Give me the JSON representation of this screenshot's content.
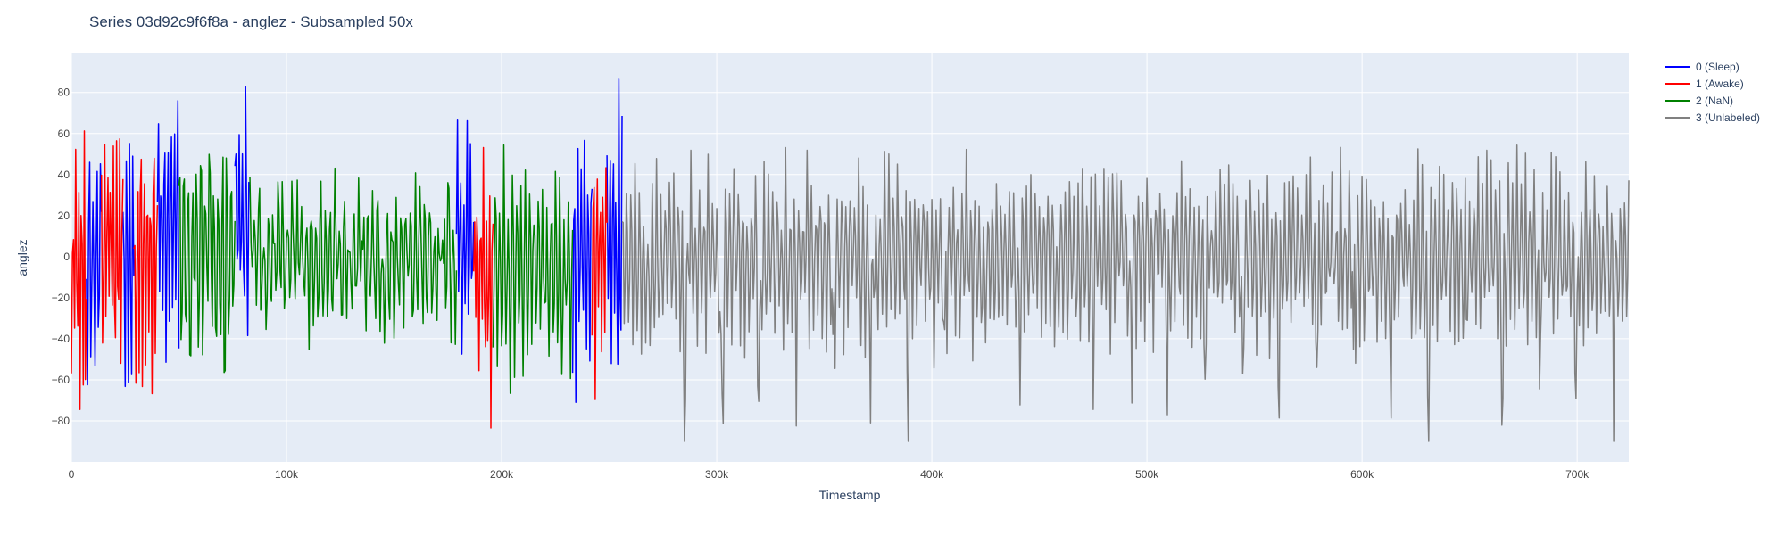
{
  "chart_data": {
    "type": "line",
    "title": "Series 03d92c9f6f8a - anglez - Subsampled 50x",
    "xlabel": "Timestamp",
    "ylabel": "anglez",
    "xlim": [
      0,
      724000
    ],
    "ylim": [
      -100,
      99
    ],
    "x_ticks": [
      {
        "value": 0,
        "label": "0"
      },
      {
        "value": 100000,
        "label": "100k"
      },
      {
        "value": 200000,
        "label": "200k"
      },
      {
        "value": 300000,
        "label": "300k"
      },
      {
        "value": 400000,
        "label": "400k"
      },
      {
        "value": 500000,
        "label": "500k"
      },
      {
        "value": 600000,
        "label": "600k"
      },
      {
        "value": 700000,
        "label": "700k"
      }
    ],
    "y_ticks": [
      {
        "value": 80,
        "label": "80"
      },
      {
        "value": 60,
        "label": "60"
      },
      {
        "value": 40,
        "label": "40"
      },
      {
        "value": 20,
        "label": "20"
      },
      {
        "value": 0,
        "label": "0"
      },
      {
        "value": -20,
        "label": "−20"
      },
      {
        "value": -40,
        "label": "−40"
      },
      {
        "value": -60,
        "label": "−60"
      },
      {
        "value": -80,
        "label": "−80"
      }
    ],
    "grid": true,
    "legend_position": "top-right",
    "background": "#e5ecf6",
    "series": [
      {
        "name": "0 (Sleep)",
        "color": "#0000ff",
        "segments": [
          {
            "x_start": 7000,
            "x_end": 14000,
            "amp": 70,
            "period": 1800,
            "baseline": -5
          },
          {
            "x_start": 24000,
            "x_end": 29000,
            "amp": 75,
            "period": 1500,
            "baseline": 0
          },
          {
            "x_start": 40000,
            "x_end": 50000,
            "amp": 80,
            "period": 1500,
            "baseline": 15
          },
          {
            "x_start": 76000,
            "x_end": 83000,
            "amp": 72,
            "period": 1600,
            "baseline": 10
          },
          {
            "x_start": 179000,
            "x_end": 187000,
            "amp": 70,
            "period": 1500,
            "baseline": 5
          },
          {
            "x_start": 233000,
            "x_end": 242000,
            "amp": 75,
            "period": 1600,
            "baseline": 0
          },
          {
            "x_start": 249000,
            "x_end": 256000,
            "amp": 80,
            "period": 1400,
            "baseline": 0
          }
        ]
      },
      {
        "name": "1 (Awake)",
        "color": "#ff0000",
        "segments": [
          {
            "x_start": 0,
            "x_end": 7000,
            "amp": 70,
            "period": 1300,
            "baseline": -10
          },
          {
            "x_start": 14000,
            "x_end": 24000,
            "amp": 75,
            "period": 1400,
            "baseline": 0
          },
          {
            "x_start": 29000,
            "x_end": 40000,
            "amp": 70,
            "period": 1500,
            "baseline": 0
          },
          {
            "x_start": 187000,
            "x_end": 196000,
            "amp": 80,
            "period": 1400,
            "baseline": -5
          },
          {
            "x_start": 242000,
            "x_end": 249000,
            "amp": 70,
            "period": 1500,
            "baseline": 0
          }
        ]
      },
      {
        "name": "2 (NaN)",
        "color": "#008000",
        "segments": [
          {
            "x_start": 50000,
            "x_end": 76000,
            "amp": 75,
            "period": 2000,
            "baseline": 0
          },
          {
            "x_start": 83000,
            "x_end": 179000,
            "amp": 35,
            "period": 2200,
            "baseline": 0
          },
          {
            "x_start": 196000,
            "x_end": 233000,
            "amp": 55,
            "period": 2000,
            "baseline": -5
          }
        ]
      },
      {
        "name": "3 (Unlabeled)",
        "color": "#808080",
        "segments": [
          {
            "x_start": 256000,
            "x_end": 724000,
            "amp": 45,
            "period": 2000,
            "baseline": 0,
            "day_period": 17280,
            "dip": -70
          }
        ]
      }
    ]
  }
}
